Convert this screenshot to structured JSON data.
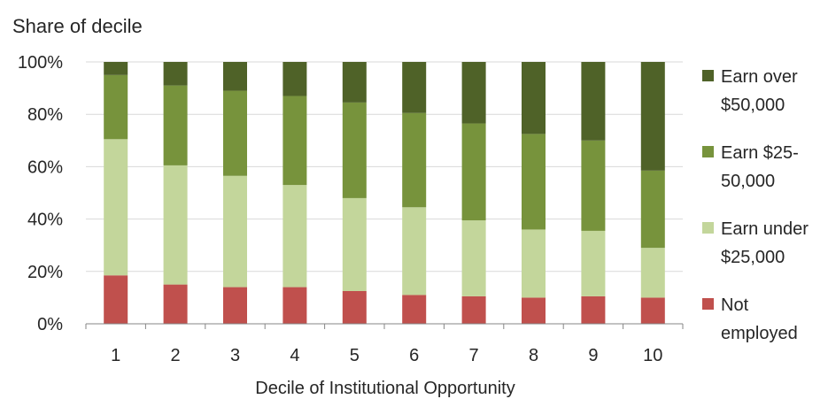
{
  "chart_data": {
    "type": "bar",
    "stacked": true,
    "title": "Share of decile",
    "xlabel": "Decile of Institutional Opportunity",
    "ylabel": "",
    "ylim": [
      0,
      100
    ],
    "y_ticks": [
      "0%",
      "20%",
      "40%",
      "60%",
      "80%",
      "100%"
    ],
    "y_tick_values": [
      0,
      20,
      40,
      60,
      80,
      100
    ],
    "categories": [
      "1",
      "2",
      "3",
      "4",
      "5",
      "6",
      "7",
      "8",
      "9",
      "10"
    ],
    "grid": true,
    "legend_position": "right",
    "series": [
      {
        "name": "Not employed",
        "legend_lines": [
          "Not",
          "employed"
        ],
        "color": "#c0504d",
        "values": [
          18.5,
          15,
          14,
          14,
          12.5,
          11,
          10.5,
          10,
          10.5,
          10
        ]
      },
      {
        "name": "Earn under $25,000",
        "legend_lines": [
          "Earn under",
          "$25,000"
        ],
        "color": "#c3d69b",
        "values": [
          52,
          45.5,
          42.5,
          39,
          35.5,
          33.5,
          29,
          26,
          25,
          19
        ]
      },
      {
        "name": "Earn $25-50,000",
        "legend_lines": [
          "Earn $25-",
          "50,000"
        ],
        "color": "#77933c",
        "values": [
          24.5,
          30.5,
          32.5,
          34,
          36.5,
          36,
          37,
          36.5,
          34.5,
          29.5
        ]
      },
      {
        "name": "Earn over $50,000",
        "legend_lines": [
          "Earn over",
          "$50,000"
        ],
        "color": "#4f6228",
        "values": [
          5,
          9,
          11,
          13,
          15.5,
          19.5,
          23.5,
          27.5,
          30,
          41.5
        ]
      }
    ]
  }
}
